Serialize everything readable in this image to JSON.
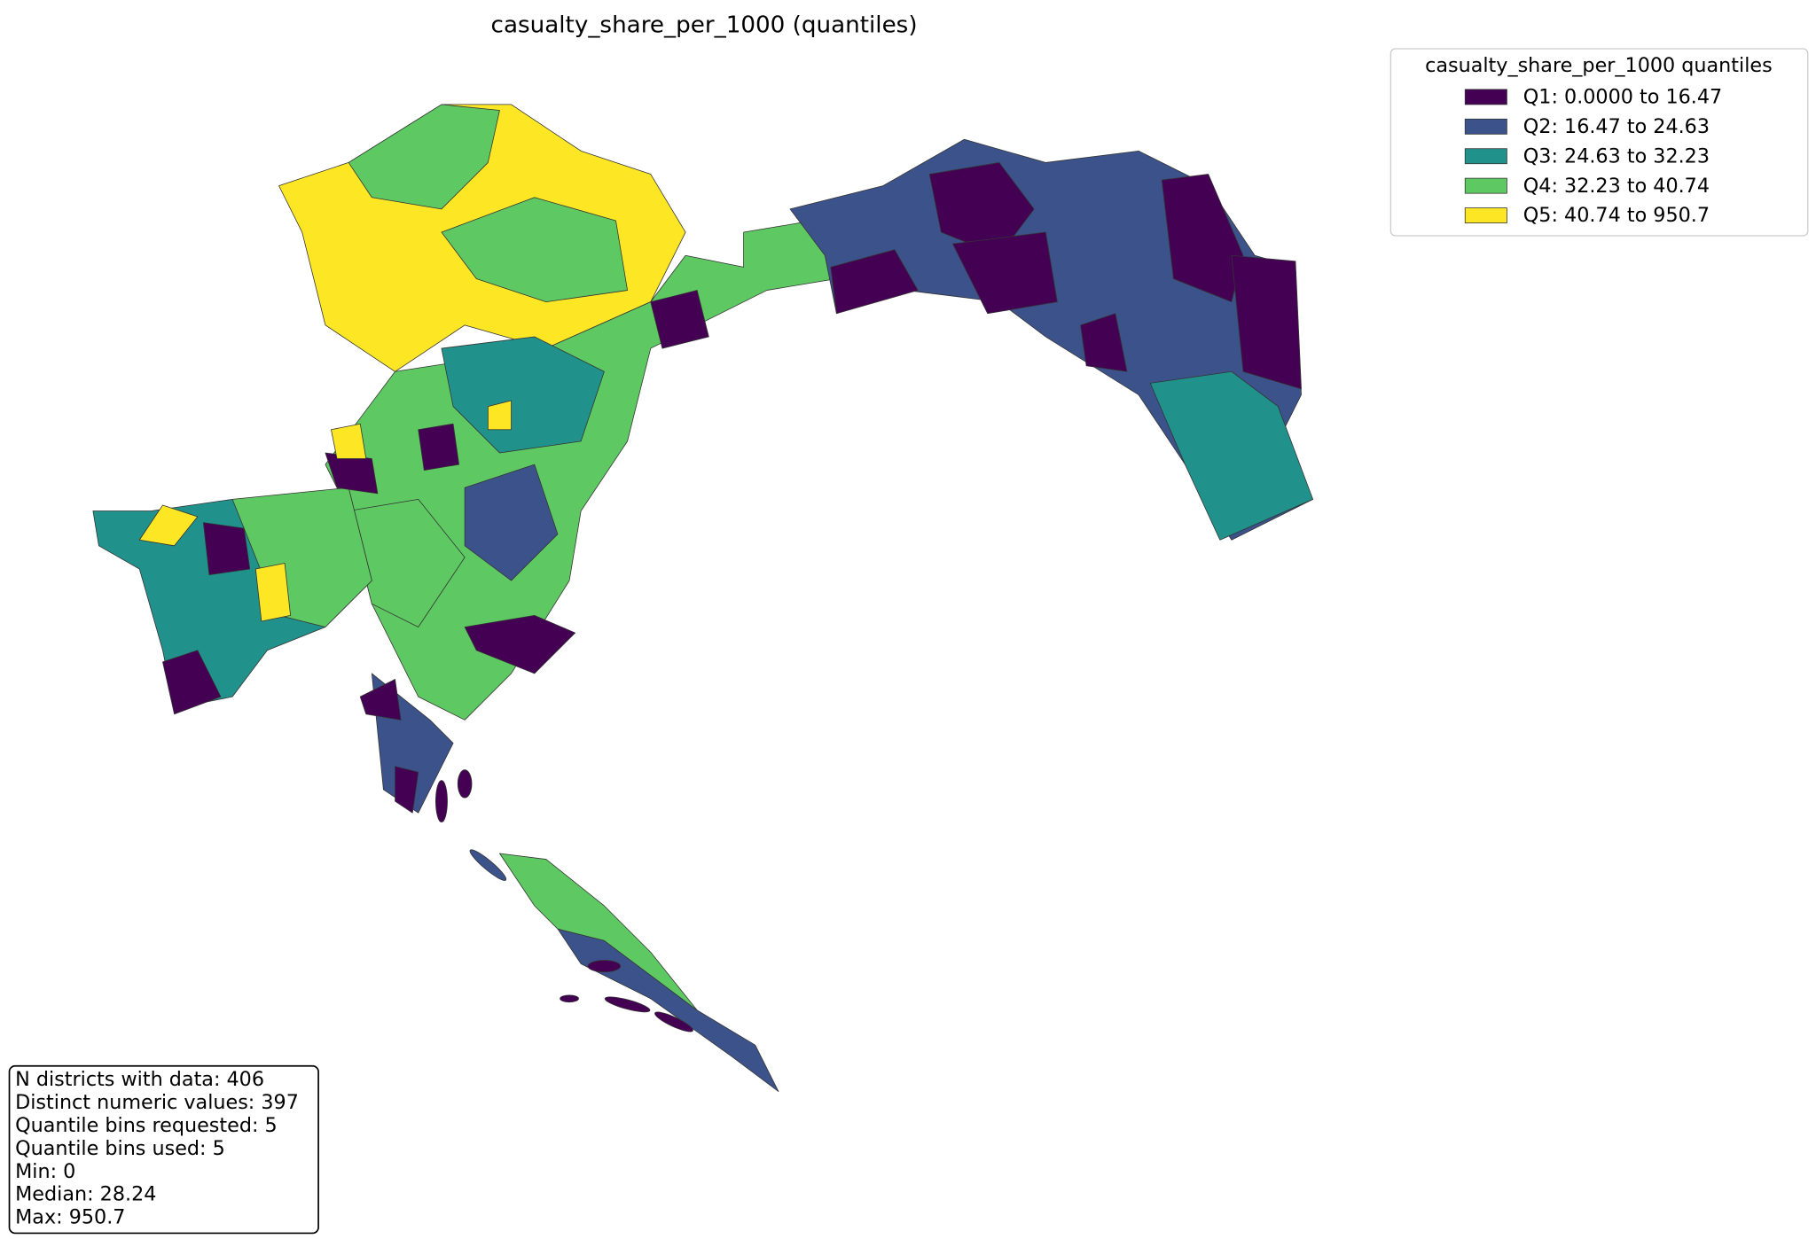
{
  "title": "casualty_share_per_1000 (quantiles)",
  "legend": {
    "title": "casualty_share_per_1000 quantiles",
    "items": [
      {
        "label": "Q1: 0.0000 to 16.47",
        "color": "#440154"
      },
      {
        "label": "Q2: 16.47 to 24.63",
        "color": "#3b528b"
      },
      {
        "label": "Q3: 24.63 to 32.23",
        "color": "#21918c"
      },
      {
        "label": "Q4: 32.23 to 40.74",
        "color": "#5ec962"
      },
      {
        "label": "Q5: 40.74 to 950.7",
        "color": "#fde725"
      }
    ]
  },
  "stats": [
    "N districts with data: 406",
    "Distinct numeric values: 397",
    "Quantile bins requested: 5",
    "Quantile bins used: 5",
    "Min: 0",
    "Median: 28.24",
    "Max: 950.7"
  ]
}
